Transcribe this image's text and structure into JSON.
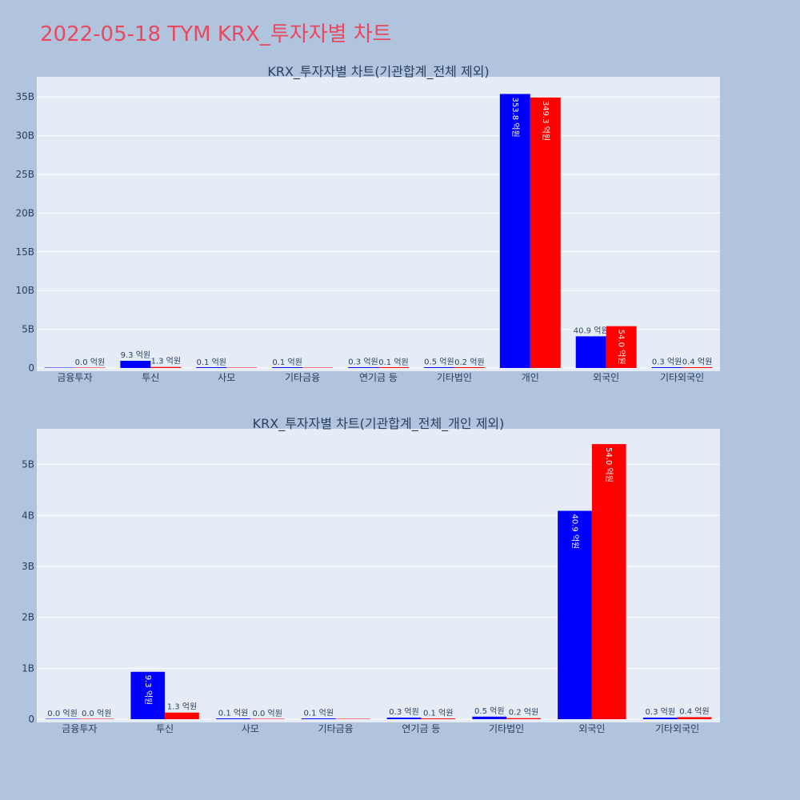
{
  "page": {
    "title": "2022-05-18 TYM KRX_투자자별 차트"
  },
  "colors": {
    "background": "#b0c4de",
    "plot_bg": "#e5ecf6",
    "title": "#e8495f",
    "series1": "#0000ff",
    "series2": "#ff0000",
    "grid": "#ffffff",
    "text": "#2a3f5f"
  },
  "chart_data": [
    {
      "type": "bar",
      "title": "KRX_투자자별 차트(기관합계_전체 제외)",
      "categories": [
        "금융투자",
        "투신",
        "사모",
        "기타금융",
        "연기금 등",
        "기타법인",
        "개인",
        "외국인",
        "기타외국인"
      ],
      "yticks": [
        "0",
        "5B",
        "10B",
        "15B",
        "20B",
        "25B",
        "30B",
        "35B"
      ],
      "ylim": [
        0,
        37600000000
      ],
      "grid": true,
      "series": [
        {
          "color": "#0000ff",
          "values": [
            0,
            930000000,
            10000000,
            10000000,
            30000000,
            50000000,
            35380000000,
            4090000000,
            30000000
          ],
          "labels": [
            "",
            "9.3 억원",
            "0.1 억원",
            "0.1 억원",
            "0.3 억원",
            "0.5 억원",
            "353.8 억원",
            "40.9 억원",
            "0.3 억원"
          ]
        },
        {
          "color": "#ff0000",
          "values": [
            0,
            130000000,
            0,
            0,
            10000000,
            20000000,
            34930000000,
            5400000000,
            40000000
          ],
          "labels": [
            "0.0 억원",
            "1.3 억원",
            "",
            "",
            "0.1 억원",
            "0.2 억원",
            "349.3 억원",
            "54.0 억원",
            "0.4 억원"
          ]
        }
      ]
    },
    {
      "type": "bar",
      "title": "KRX_투자자별 차트(기관합계_전체_개인 제외)",
      "categories": [
        "금융투자",
        "투신",
        "사모",
        "기타금융",
        "연기금 등",
        "기타법인",
        "외국인",
        "기타외국인"
      ],
      "yticks": [
        "0",
        "1B",
        "2B",
        "3B",
        "4B",
        "5B"
      ],
      "ylim": [
        0,
        5700000000
      ],
      "grid": true,
      "series": [
        {
          "color": "#0000ff",
          "values": [
            0,
            930000000,
            10000000,
            10000000,
            30000000,
            50000000,
            4090000000,
            30000000
          ],
          "labels": [
            "0.0 억원",
            "9.3 억원",
            "0.1 억원",
            "0.1 억원",
            "0.3 억원",
            "0.5 억원",
            "40.9 억원",
            "0.3 억원"
          ]
        },
        {
          "color": "#ff0000",
          "values": [
            0,
            130000000,
            0,
            0,
            10000000,
            20000000,
            5400000000,
            40000000
          ],
          "labels": [
            "0.0 억원",
            "1.3 억원",
            "0.0 억원",
            "",
            "0.1 억원",
            "0.2 억원",
            "54.0 억원",
            "0.4 억원"
          ]
        }
      ]
    }
  ]
}
